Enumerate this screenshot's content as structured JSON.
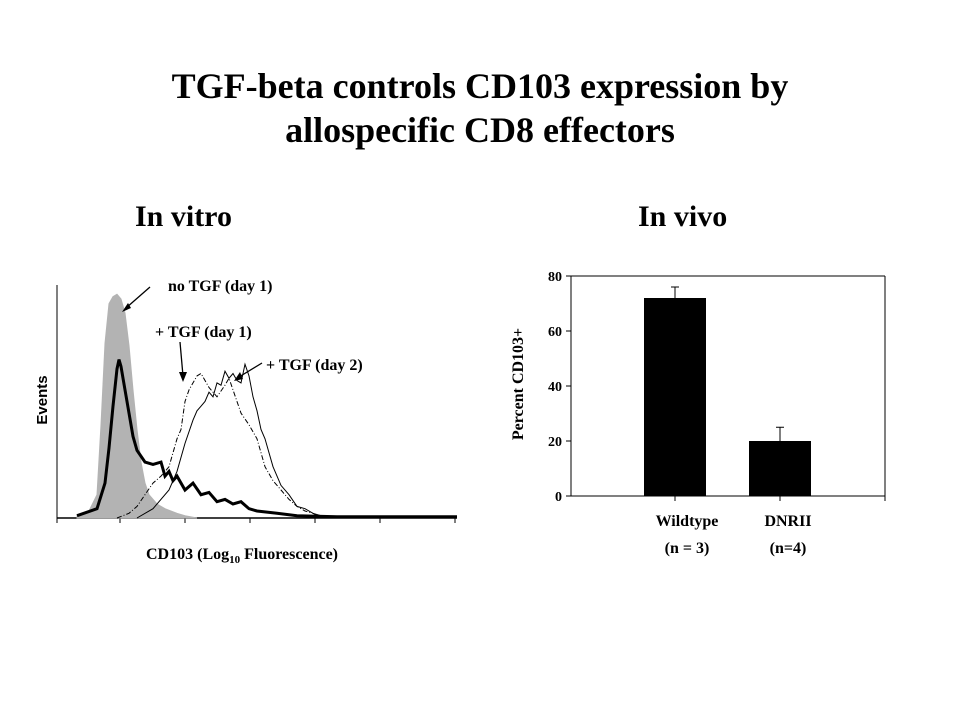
{
  "title_line1": "TGF-beta controls CD103 expression by",
  "title_line2": "allospecific CD8 effectors",
  "left_panel_title": "In  vitro",
  "right_panel_title": "In  vivo",
  "colors": {
    "axis": "#000000",
    "fill_gray": "#b3b3b3",
    "bar": "#000000"
  },
  "chart_data": [
    {
      "type": "area",
      "title": "In  vitro",
      "xlabel_main": "CD103 (Log",
      "xlabel_sub": "10",
      "xlabel_tail": " Fluorescence)",
      "ylabel": "Events",
      "xlim": [
        0,
        100
      ],
      "ylim": [
        0,
        100
      ],
      "annotations": [
        "no TGF (day 1)",
        "+ TGF (day 1)",
        "+ TGF (day 2)"
      ],
      "series": [
        {
          "style": "filled-gray",
          "x": [
            5,
            8,
            10,
            11,
            12,
            13,
            14,
            15,
            16,
            17,
            18,
            19,
            20,
            21,
            22,
            23,
            25,
            27,
            30,
            32,
            35
          ],
          "y": [
            1,
            3,
            10,
            40,
            75,
            92,
            95,
            96,
            94,
            88,
            74,
            55,
            38,
            24,
            15,
            10,
            6,
            4,
            2,
            1,
            0
          ]
        },
        {
          "name": "no TGF (day 1)",
          "style": "thick-solid",
          "x": [
            5,
            10,
            12,
            13,
            14,
            15,
            15.5,
            16,
            17,
            18,
            19,
            20,
            22,
            24,
            26,
            27,
            28,
            29,
            30,
            32,
            34,
            36,
            38,
            40,
            42,
            44,
            46,
            48,
            50,
            55,
            60,
            70,
            100
          ],
          "y": [
            1,
            4,
            15,
            30,
            48,
            64,
            68,
            65,
            55,
            45,
            35,
            29,
            24,
            23,
            24,
            18,
            20,
            16,
            18,
            12,
            15,
            10,
            11,
            7,
            8,
            6,
            7,
            4,
            3,
            2,
            1,
            0.5,
            0.5
          ]
        },
        {
          "name": "+ TGF (day 1)",
          "style": "dash-dot",
          "x": [
            15,
            18,
            20,
            22,
            24,
            26,
            28,
            30,
            31,
            32,
            33,
            34,
            35,
            36,
            38,
            40,
            42,
            43,
            44,
            46,
            48,
            50,
            52,
            54,
            56,
            58,
            60,
            62,
            64,
            66
          ],
          "y": [
            0,
            2,
            5,
            10,
            15,
            18,
            22,
            34,
            38,
            50,
            55,
            58,
            61,
            62,
            56,
            52,
            57,
            60,
            55,
            45,
            40,
            34,
            22,
            16,
            12,
            8,
            5,
            3,
            2,
            0
          ]
        },
        {
          "name": "+ TGF (day 2)",
          "style": "thin-solid",
          "x": [
            20,
            24,
            28,
            30,
            32,
            34,
            35,
            36,
            37,
            38,
            39,
            40,
            41,
            42,
            43,
            44,
            45,
            46,
            47,
            48,
            49,
            50,
            51,
            52,
            53,
            54,
            56,
            58,
            60,
            62,
            64,
            66,
            68
          ],
          "y": [
            0,
            4,
            12,
            20,
            32,
            42,
            46,
            48,
            50,
            54,
            52,
            58,
            57,
            63,
            60,
            62,
            59,
            58,
            66,
            61,
            52,
            46,
            38,
            34,
            28,
            22,
            14,
            10,
            5,
            4,
            2,
            1,
            0
          ]
        }
      ]
    },
    {
      "type": "bar",
      "title": "In  vivo",
      "ylabel": "Percent  CD103+",
      "ylim": [
        0,
        80
      ],
      "yticks": [
        "0",
        "20",
        "40",
        "60",
        "80"
      ],
      "categories": [
        "Wildtype",
        "DNRII"
      ],
      "category_sublabels": [
        "(n = 3)",
        "(n=4)"
      ],
      "values": [
        72,
        20
      ],
      "errors": [
        4,
        5
      ]
    }
  ]
}
